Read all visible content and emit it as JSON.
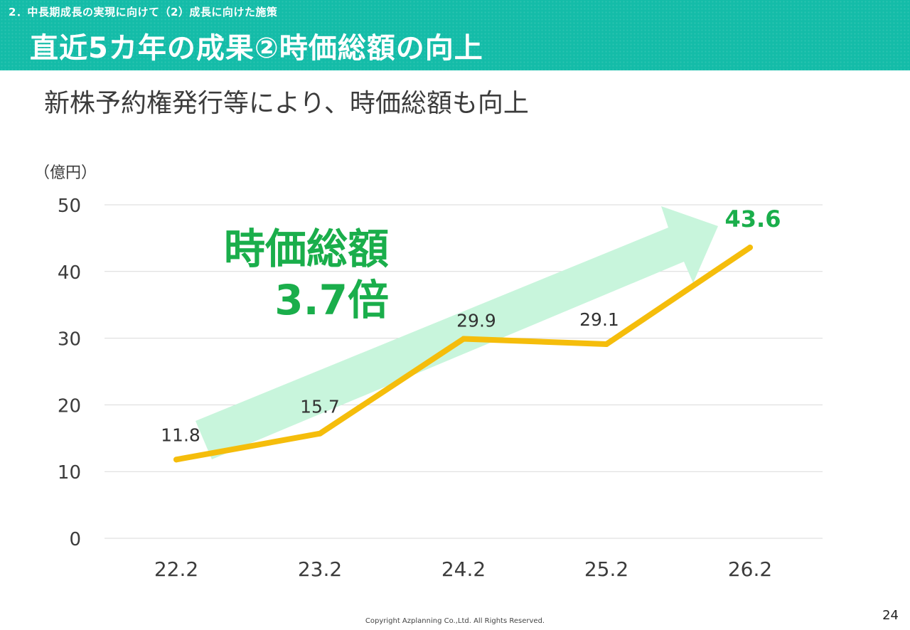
{
  "header": {
    "section": "2．中長期成長の実現に向けて（2）成長に向けた施策",
    "title": "直近5カ年の成果②時価総額の向上"
  },
  "subtitle": "新株予約権発行等により、時価総額も向上",
  "callout": {
    "line1": "時価総額",
    "line2": "3.7倍"
  },
  "colors": {
    "header_bg": "#14bca8",
    "line": "#f5bd0b",
    "arrow": "#c8f5dc",
    "accent_green": "#1aae4b",
    "gridline": "#d9d9d9"
  },
  "chart_data": {
    "type": "line",
    "unit_label": "（億円）",
    "categories": [
      "22.2",
      "23.2",
      "24.2",
      "25.2",
      "26.2"
    ],
    "values": [
      11.8,
      15.7,
      29.9,
      29.1,
      43.6
    ],
    "data_labels": [
      "11.8",
      "15.7",
      "29.9",
      "29.1",
      "43.6"
    ],
    "yticks": [
      0,
      10,
      20,
      30,
      40,
      50
    ],
    "ylim": [
      0,
      50
    ],
    "grid": true,
    "highlight_last": true
  },
  "footer": {
    "copyright": "Copyright Azplanning Co.,Ltd. All Rights Reserved.",
    "page": "24"
  }
}
